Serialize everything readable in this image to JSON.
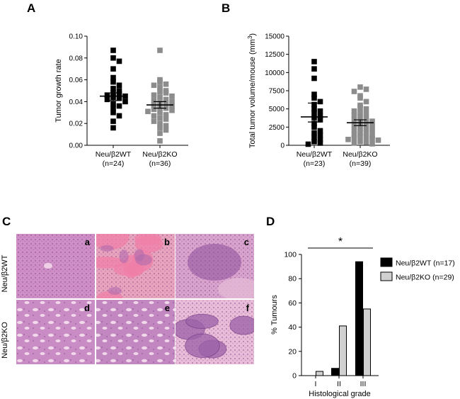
{
  "panels": {
    "A": "A",
    "B": "B",
    "C": "C",
    "D": "D"
  },
  "chart_data": [
    {
      "id": "A",
      "type": "scatter",
      "ylabel": "Tumor growth rate",
      "ylim": [
        0,
        0.1
      ],
      "yticks": [
        0.0,
        0.02,
        0.04,
        0.06,
        0.08,
        0.1
      ],
      "ytick_labels": [
        "0.00",
        "0.02",
        "0.04",
        "0.06",
        "0.08",
        "0.10"
      ],
      "categories": [
        "Neu/β2WT",
        "Neu/β2KO"
      ],
      "category_sublabels": [
        "(n=24)",
        "(n=36)"
      ],
      "colors": [
        "#000000",
        "#8c8c8c"
      ],
      "marker_shape": "square",
      "series": [
        {
          "values": [
            0.087,
            0.08,
            0.077,
            0.07,
            0.062,
            0.058,
            0.055,
            0.052,
            0.05,
            0.048,
            0.047,
            0.046,
            0.045,
            0.044,
            0.043,
            0.042,
            0.04,
            0.038,
            0.036,
            0.034,
            0.03,
            0.027,
            0.022,
            0.016
          ],
          "mean": 0.045,
          "sem_low": 0.041,
          "sem_high": 0.048
        },
        {
          "values": [
            0.087,
            0.06,
            0.058,
            0.056,
            0.055,
            0.053,
            0.05,
            0.049,
            0.048,
            0.046,
            0.045,
            0.044,
            0.042,
            0.041,
            0.04,
            0.039,
            0.038,
            0.037,
            0.036,
            0.035,
            0.034,
            0.033,
            0.032,
            0.031,
            0.03,
            0.028,
            0.027,
            0.025,
            0.024,
            0.022,
            0.02,
            0.018,
            0.016,
            0.014,
            0.011,
            0.004
          ],
          "mean": 0.037,
          "sem_low": 0.034,
          "sem_high": 0.04
        }
      ]
    },
    {
      "id": "B",
      "type": "scatter",
      "ylabel": "Total tumor volume/mouse (mm",
      "ylabel_sup": "3",
      "ylabel_end": ")",
      "ylim": [
        0,
        15000
      ],
      "yticks": [
        0,
        2500,
        5000,
        7500,
        10000,
        12500,
        15000
      ],
      "ytick_labels": [
        "0",
        "2500",
        "5000",
        "7500",
        "10000",
        "12500",
        "15000"
      ],
      "categories": [
        "Neu/β2WT",
        "Neu/β2KO"
      ],
      "category_sublabels": [
        "(n=23)",
        "(n=39)"
      ],
      "colors": [
        "#000000",
        "#8c8c8c"
      ],
      "marker_shape": "square",
      "series": [
        {
          "values": [
            11500,
            10500,
            9200,
            7000,
            6500,
            6000,
            5600,
            5000,
            4700,
            4500,
            4000,
            3800,
            3500,
            3000,
            2500,
            2000,
            1700,
            1400,
            1100,
            800,
            500,
            300,
            150
          ],
          "mean": 3900,
          "sem_low": 3200,
          "sem_high": 5800
        },
        {
          "values": [
            8000,
            7700,
            7400,
            6800,
            6500,
            6000,
            5500,
            5200,
            5000,
            4700,
            4500,
            4300,
            4100,
            3900,
            3700,
            3500,
            3300,
            3100,
            3000,
            2800,
            2700,
            2500,
            2300,
            2100,
            2000,
            1800,
            1700,
            1500,
            1300,
            1200,
            1100,
            1000,
            900,
            800,
            700,
            500,
            400,
            300,
            200
          ],
          "mean": 3100,
          "sem_low": 2700,
          "sem_high": 3500
        }
      ]
    },
    {
      "id": "D",
      "type": "bar",
      "ylabel": "% Tumours",
      "xlabel": "Histological grade",
      "ylim": [
        0,
        100
      ],
      "yticks": [
        0,
        20,
        40,
        60,
        80,
        100
      ],
      "ytick_labels": [
        "0",
        "20",
        "40",
        "60",
        "80",
        "100"
      ],
      "categories": [
        "I",
        "II",
        "III"
      ],
      "significance": "*",
      "legend_position": "right",
      "series": [
        {
          "name": "Neu/β2WT (n=17)",
          "color": "#000000",
          "values": [
            0,
            6,
            94
          ]
        },
        {
          "name": "Neu/β2KO (n=29)",
          "color": "#d0d0d0",
          "values": [
            3.5,
            41,
            55
          ]
        }
      ]
    }
  ],
  "micrographs": {
    "row_labels": [
      "Neu/β2WT",
      "Neu/β2KO"
    ],
    "tiles": [
      {
        "letter": "a",
        "pattern": "solid",
        "base": "#cf8fc6",
        "accent": "#a85fa6"
      },
      {
        "letter": "b",
        "pattern": "stroma",
        "base": "#e8a4bd",
        "accent": "#f07fa8"
      },
      {
        "letter": "c",
        "pattern": "invasive",
        "base": "#d8a3cc",
        "accent": "#8a4f9a"
      },
      {
        "letter": "d",
        "pattern": "acini",
        "base": "#c98cc4",
        "accent": "#f3dcec"
      },
      {
        "letter": "e",
        "pattern": "acini",
        "base": "#c287c0",
        "accent": "#f6e2f0"
      },
      {
        "letter": "f",
        "pattern": "nests",
        "base": "#e9bcd8",
        "accent": "#9c62a8"
      }
    ]
  }
}
